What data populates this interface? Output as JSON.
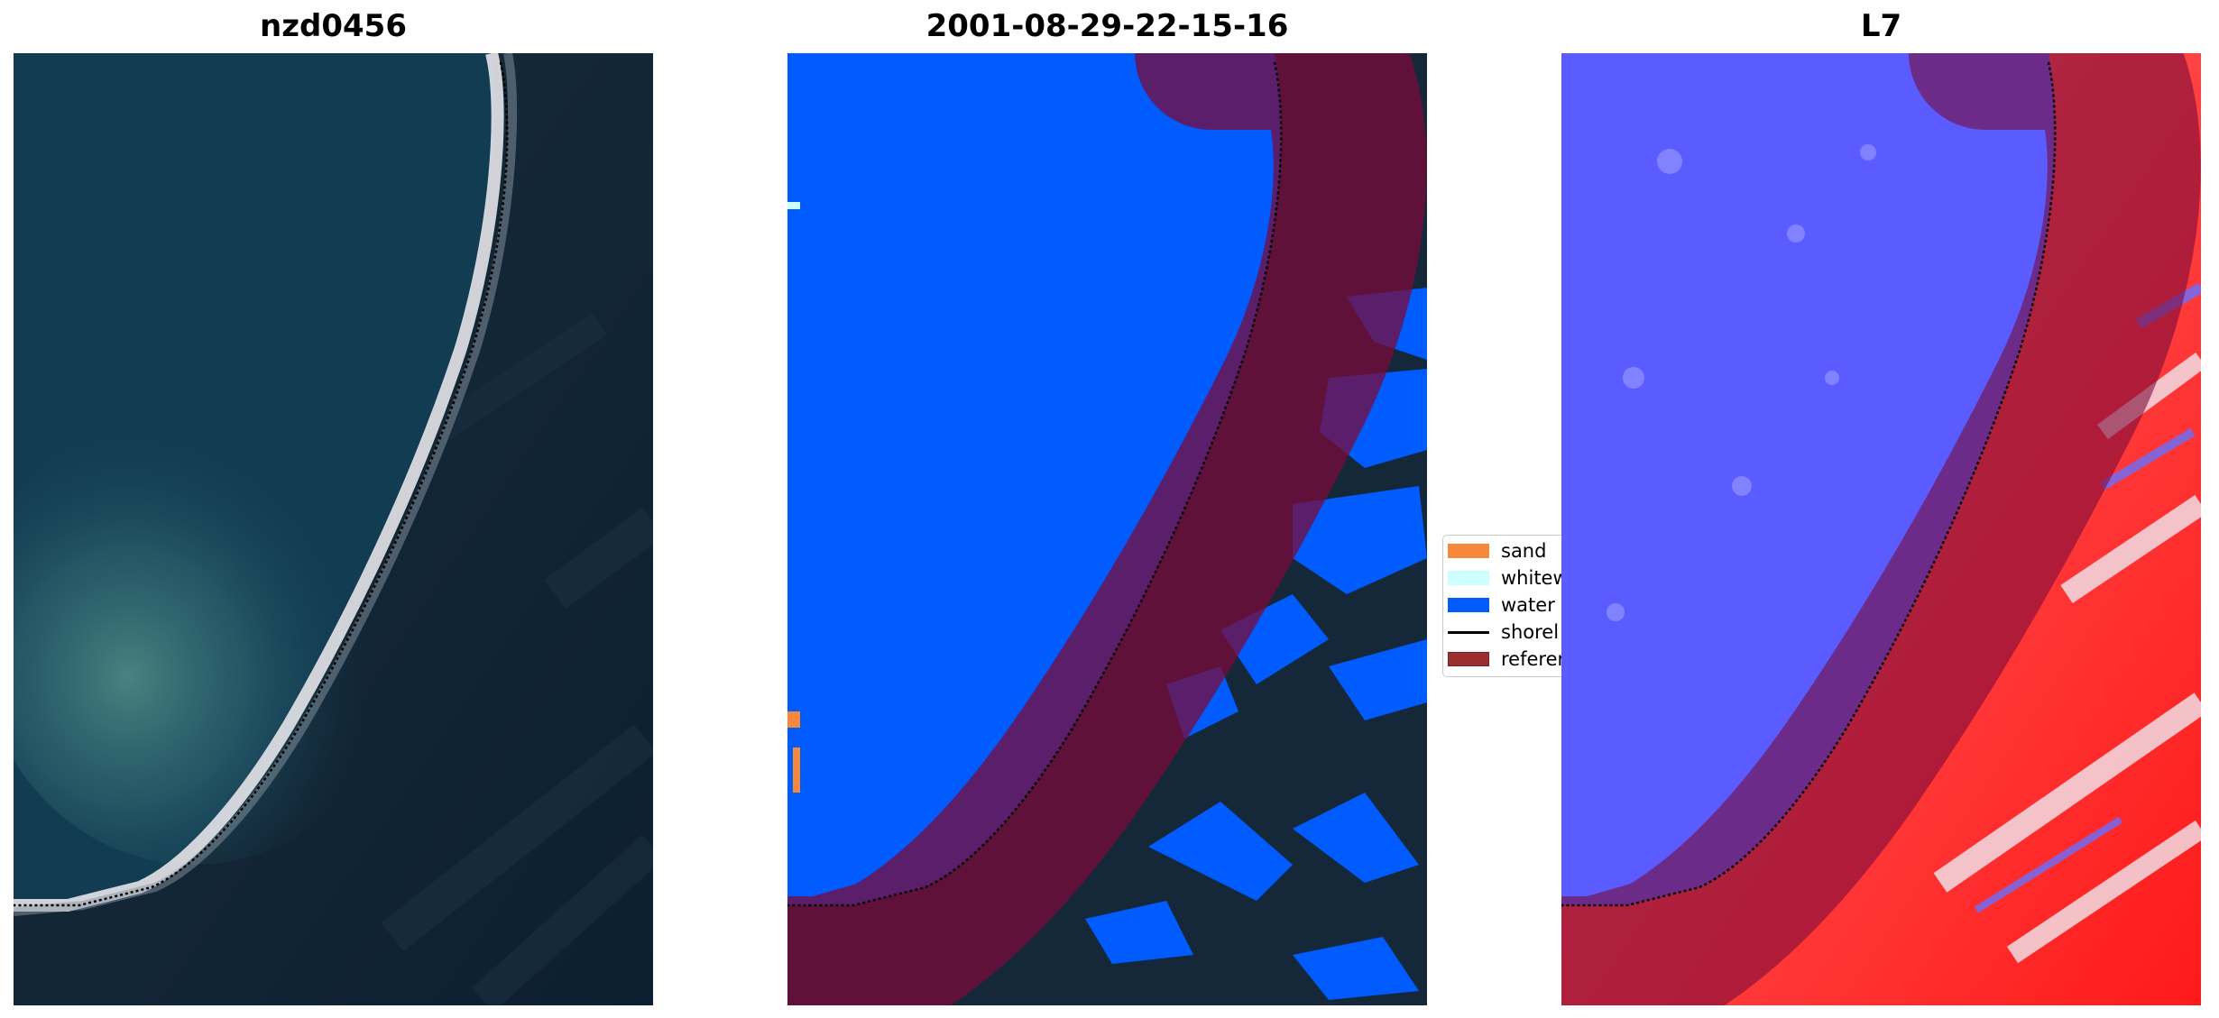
{
  "panels": [
    {
      "title": "nzd0456",
      "kind": "satellite-rgb-image"
    },
    {
      "title": "2001-08-29-22-15-16",
      "kind": "classified-image"
    },
    {
      "title": "L7",
      "kind": "water-index-image"
    }
  ],
  "legend": {
    "items": [
      {
        "label": "sand",
        "type": "patch",
        "color": "#f5883a"
      },
      {
        "label": "whitew",
        "type": "patch",
        "color": "#ccffff"
      },
      {
        "label": "water",
        "type": "patch",
        "color": "#005cff"
      },
      {
        "label": "shorel",
        "type": "line",
        "color": "#000000"
      },
      {
        "label": "referer",
        "type": "patch",
        "color": "#9b2e2e"
      }
    ]
  },
  "colors": {
    "ocean": "#123c52",
    "land": "#0d2236",
    "beach": "#e6e6ea",
    "class_water": "#005cff",
    "class_land": "#15283a",
    "reference_buffer": "#7a0a3a",
    "index_water": "#5a5cff",
    "index_land": "#ff2a2a",
    "shoreline": "#000000"
  }
}
